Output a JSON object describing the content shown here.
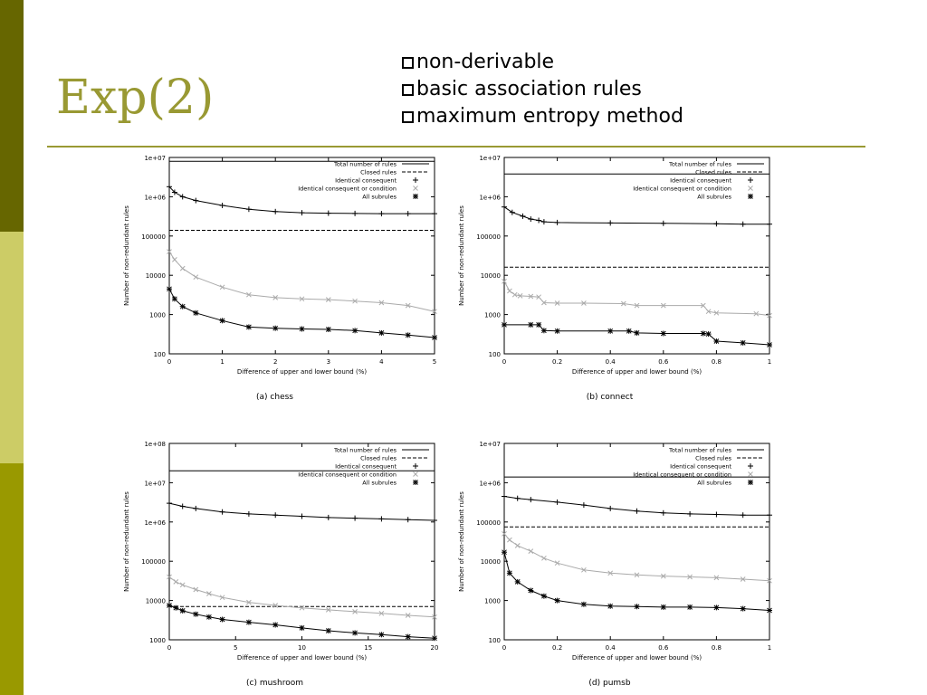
{
  "slide": {
    "title": "Exp(2)",
    "bullets": [
      "non-derivable",
      "basic association rules",
      "maximum entropy method"
    ],
    "accent_color": "#999933",
    "sidebar_colors": [
      "#666600",
      "#cccc66",
      "#999900"
    ]
  },
  "chart_data": [
    {
      "type": "line",
      "caption": "(a) chess",
      "xlabel": "Difference of upper and lower bound (%)",
      "ylabel": "Number of non-redundant rules",
      "log_y": true,
      "xlim": [
        0,
        5
      ],
      "ylim": [
        100,
        10000000
      ],
      "x_ticks": [
        0,
        1,
        2,
        3,
        4,
        5
      ],
      "x_tick_labels": [
        "0",
        "1",
        "2",
        "3",
        "4",
        "5"
      ],
      "y_ticks": [
        100,
        1000,
        10000,
        100000,
        1000000,
        10000000
      ],
      "y_tick_labels": [
        "100",
        "1000",
        "10000",
        "100000",
        "1e+06",
        "1e+07"
      ],
      "legend_position": "top-right",
      "series": [
        {
          "name": "Total number of rules",
          "style": "solid",
          "x": [
            0,
            5
          ],
          "y": [
            8000000,
            8000000
          ]
        },
        {
          "name": "Closed rules",
          "style": "dashed",
          "x": [
            0,
            5
          ],
          "y": [
            140000,
            140000
          ]
        },
        {
          "name": "Identical consequent",
          "style": "plus",
          "x": [
            0,
            0.1,
            0.25,
            0.5,
            1,
            1.5,
            2,
            2.5,
            3,
            3.5,
            4,
            4.5,
            5
          ],
          "y": [
            1800000,
            1300000,
            1000000,
            800000,
            600000,
            480000,
            420000,
            390000,
            380000,
            375000,
            370000,
            370000,
            370000
          ]
        },
        {
          "name": "Identical consequent or condition",
          "style": "cross",
          "x": [
            0,
            0.1,
            0.25,
            0.5,
            1,
            1.5,
            2,
            2.5,
            3,
            3.5,
            4,
            4.5,
            5
          ],
          "y": [
            40000,
            25000,
            15000,
            9000,
            5000,
            3200,
            2700,
            2500,
            2400,
            2200,
            2000,
            1700,
            1200
          ]
        },
        {
          "name": "All subrules",
          "style": "star",
          "x": [
            0,
            0.1,
            0.25,
            0.5,
            1,
            1.5,
            2,
            2.5,
            3,
            3.5,
            4,
            4.5,
            5
          ],
          "y": [
            4500,
            2500,
            1600,
            1100,
            700,
            480,
            450,
            430,
            420,
            390,
            340,
            300,
            260
          ]
        }
      ]
    },
    {
      "type": "line",
      "caption": "(b) connect",
      "xlabel": "Difference of upper and lower bound (%)",
      "ylabel": "Number of non-redundant rules",
      "log_y": true,
      "xlim": [
        0,
        1
      ],
      "ylim": [
        100,
        10000000
      ],
      "x_ticks": [
        0,
        0.2,
        0.4,
        0.6,
        0.8,
        1
      ],
      "x_tick_labels": [
        "0",
        "0.2",
        "0.4",
        "0.6",
        "0.8",
        "1"
      ],
      "y_ticks": [
        100,
        1000,
        10000,
        100000,
        1000000,
        10000000
      ],
      "y_tick_labels": [
        "100",
        "1000",
        "10000",
        "100000",
        "1e+06",
        "1e+07"
      ],
      "legend_position": "top-right",
      "series": [
        {
          "name": "Total number of rules",
          "style": "solid",
          "x": [
            0,
            1
          ],
          "y": [
            3800000,
            3800000
          ]
        },
        {
          "name": "Closed rules",
          "style": "dashed",
          "x": [
            0,
            1
          ],
          "y": [
            16000,
            16000
          ]
        },
        {
          "name": "Identical consequent",
          "style": "plus",
          "x": [
            0,
            0.03,
            0.07,
            0.1,
            0.13,
            0.15,
            0.2,
            0.4,
            0.6,
            0.8,
            0.9,
            1
          ],
          "y": [
            550000,
            400000,
            320000,
            270000,
            250000,
            230000,
            220000,
            215000,
            210000,
            205000,
            200000,
            200000
          ]
        },
        {
          "name": "Identical consequent or condition",
          "style": "cross",
          "x": [
            0,
            0.02,
            0.04,
            0.06,
            0.1,
            0.13,
            0.15,
            0.2,
            0.3,
            0.45,
            0.5,
            0.6,
            0.75,
            0.77,
            0.8,
            0.95,
            1
          ],
          "y": [
            7000,
            4000,
            3200,
            3000,
            2900,
            2800,
            2000,
            1950,
            1950,
            1900,
            1700,
            1700,
            1700,
            1200,
            1100,
            1050,
            950
          ]
        },
        {
          "name": "All subrules",
          "style": "star",
          "x": [
            0,
            0.1,
            0.13,
            0.15,
            0.2,
            0.4,
            0.47,
            0.5,
            0.6,
            0.75,
            0.77,
            0.8,
            0.9,
            1
          ],
          "y": [
            550,
            550,
            550,
            390,
            380,
            380,
            380,
            340,
            330,
            330,
            320,
            210,
            190,
            170
          ]
        }
      ]
    },
    {
      "type": "line",
      "caption": "(c) mushroom",
      "xlabel": "Difference of upper and lower bound (%)",
      "ylabel": "Number of non-redundant rules",
      "log_y": true,
      "xlim": [
        0,
        20
      ],
      "ylim": [
        1000,
        100000000
      ],
      "x_ticks": [
        0,
        5,
        10,
        15,
        20
      ],
      "x_tick_labels": [
        "0",
        "5",
        "10",
        "15",
        "20"
      ],
      "y_ticks": [
        1000,
        10000,
        100000,
        1000000,
        10000000,
        100000000
      ],
      "y_tick_labels": [
        "1000",
        "10000",
        "100000",
        "1e+06",
        "1e+07",
        "1e+08"
      ],
      "legend_position": "top-right",
      "series": [
        {
          "name": "Total number of rules",
          "style": "solid",
          "x": [
            0,
            20
          ],
          "y": [
            20000000,
            20000000
          ]
        },
        {
          "name": "Closed rules",
          "style": "dashed",
          "x": [
            0,
            20
          ],
          "y": [
            7000,
            7000
          ]
        },
        {
          "name": "Identical consequent",
          "style": "plus",
          "x": [
            0,
            1,
            2,
            4,
            6,
            8,
            10,
            12,
            14,
            16,
            18,
            20
          ],
          "y": [
            3000000,
            2500000,
            2200000,
            1800000,
            1600000,
            1500000,
            1400000,
            1300000,
            1250000,
            1200000,
            1150000,
            1100000
          ]
        },
        {
          "name": "Identical consequent or condition",
          "style": "cross",
          "x": [
            0,
            0.5,
            1,
            2,
            3,
            4,
            6,
            8,
            10,
            12,
            14,
            16,
            18,
            20
          ],
          "y": [
            40000,
            30000,
            25000,
            19000,
            15000,
            12000,
            9000,
            7500,
            6500,
            5800,
            5200,
            4700,
            4200,
            3800
          ]
        },
        {
          "name": "All subrules",
          "style": "star",
          "x": [
            0,
            0.5,
            1,
            2,
            3,
            4,
            6,
            8,
            10,
            12,
            14,
            16,
            18,
            20
          ],
          "y": [
            7500,
            6500,
            5500,
            4500,
            3800,
            3300,
            2800,
            2400,
            2000,
            1700,
            1500,
            1350,
            1200,
            1100
          ]
        }
      ]
    },
    {
      "type": "line",
      "caption": "(d) pumsb",
      "xlabel": "Difference of upper and lower bound (%)",
      "ylabel": "Number of non-redundant rules",
      "log_y": true,
      "xlim": [
        0,
        1
      ],
      "ylim": [
        100,
        10000000
      ],
      "x_ticks": [
        0,
        0.2,
        0.4,
        0.6,
        0.8,
        1
      ],
      "x_tick_labels": [
        "0",
        "0.2",
        "0.4",
        "0.6",
        "0.8",
        "1"
      ],
      "y_ticks": [
        100,
        1000,
        10000,
        100000,
        1000000,
        10000000
      ],
      "y_tick_labels": [
        "100",
        "1000",
        "10000",
        "100000",
        "1e+06",
        "1e+07"
      ],
      "legend_position": "top-right",
      "series": [
        {
          "name": "Total number of rules",
          "style": "solid",
          "x": [
            0,
            1
          ],
          "y": [
            1400000,
            1400000
          ]
        },
        {
          "name": "Closed rules",
          "style": "dashed",
          "x": [
            0,
            1
          ],
          "y": [
            75000,
            75000
          ]
        },
        {
          "name": "Identical consequent",
          "style": "plus",
          "x": [
            0,
            0.05,
            0.1,
            0.2,
            0.3,
            0.4,
            0.5,
            0.6,
            0.7,
            0.8,
            0.9,
            1
          ],
          "y": [
            450000,
            400000,
            370000,
            320000,
            270000,
            220000,
            190000,
            170000,
            160000,
            155000,
            150000,
            150000
          ]
        },
        {
          "name": "Identical consequent or condition",
          "style": "cross",
          "x": [
            0,
            0.02,
            0.05,
            0.1,
            0.15,
            0.2,
            0.3,
            0.4,
            0.5,
            0.6,
            0.7,
            0.8,
            0.9,
            1
          ],
          "y": [
            50000,
            35000,
            25000,
            18000,
            12000,
            9000,
            6000,
            5000,
            4500,
            4200,
            4000,
            3800,
            3500,
            3200
          ]
        },
        {
          "name": "All subrules",
          "style": "star",
          "x": [
            0,
            0.02,
            0.05,
            0.1,
            0.15,
            0.2,
            0.3,
            0.4,
            0.5,
            0.6,
            0.7,
            0.8,
            0.9,
            1
          ],
          "y": [
            17000,
            5000,
            3000,
            1800,
            1300,
            1000,
            800,
            720,
            700,
            680,
            680,
            660,
            620,
            560
          ]
        }
      ]
    }
  ]
}
